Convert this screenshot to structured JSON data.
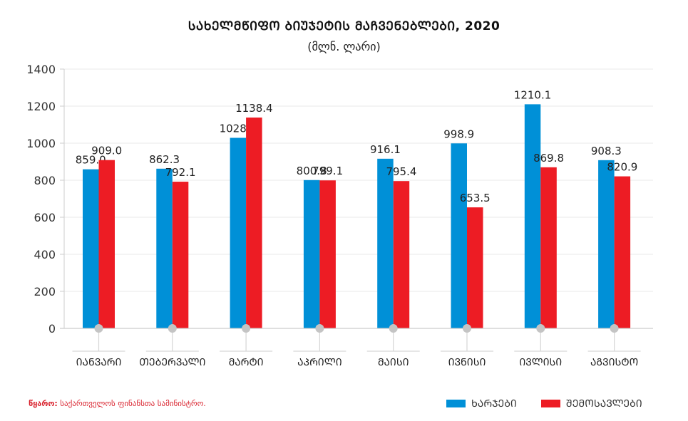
{
  "header": {
    "title": "ᲡᲐᲮᲔᲚᲛᲬᲘᲤᲝ ᲑᲘᲣᲯᲔᲢᲘᲡ ᲛᲐᲩᲕᲔᲜᲔᲑᲚᲔᲑᲘ, 2020",
    "subtitle": "(მლნ. ლარი)"
  },
  "footer": {
    "source_label": "წყარო:",
    "source_text": "საქართველოს ფინანსთა სამინისტრო."
  },
  "colors": {
    "expenses": "#0090d7",
    "revenues": "#ed1c24",
    "grid": "#e8e8e8",
    "axis": "#cccccc",
    "marker": "#c4c4c4"
  },
  "chart_data": {
    "type": "bar",
    "title": "ᲡᲐᲮᲔᲚᲛᲬᲘᲤᲝ ᲑᲘᲣᲯᲔᲢᲘᲡ ᲛᲐᲩᲕᲔᲜᲔᲑᲚᲔᲑᲘ, 2020",
    "subtitle": "(მლნ. ლარი)",
    "xlabel": "",
    "ylabel": "",
    "ylim": [
      0,
      1400
    ],
    "yticks": [
      0,
      200,
      400,
      600,
      800,
      1000,
      1200,
      1400
    ],
    "grid": true,
    "legend_position": "bottom-right",
    "categories": [
      "ᲘᲐᲜᲕᲐᲠᲘ",
      "ᲗᲔᲑᲔᲠᲕᲐᲚᲘ",
      "ᲛᲐᲠᲢᲘ",
      "ᲐᲞᲠᲘᲚᲘ",
      "ᲛᲐᲘᲡᲘ",
      "ᲘᲕᲜᲘᲡᲘ",
      "ᲘᲕᲚᲘᲡᲘ",
      "ᲐᲒᲕᲘᲡᲢᲝ"
    ],
    "series": [
      {
        "name": "ᲮᲐᲠᲯᲔᲑᲘ",
        "color": "#0090d7",
        "values": [
          859.0,
          862.3,
          1028.9,
          800.8,
          916.1,
          998.9,
          1210.1,
          908.3
        ],
        "labels": [
          "859.0",
          "862.3",
          "1028.9",
          "800.8",
          "916.1",
          "998.9",
          "1210.1",
          "908.3"
        ]
      },
      {
        "name": "ᲨᲔᲛᲝᲡᲐᲕᲚᲔᲑᲘ",
        "color": "#ed1c24",
        "values": [
          909.0,
          792.1,
          1138.4,
          799.1,
          795.4,
          653.5,
          869.8,
          820.9
        ],
        "labels": [
          "909.0",
          "792.1",
          "1138.4",
          "799.1",
          "795.4",
          "653.5",
          "869.8",
          "820.9"
        ]
      }
    ]
  }
}
